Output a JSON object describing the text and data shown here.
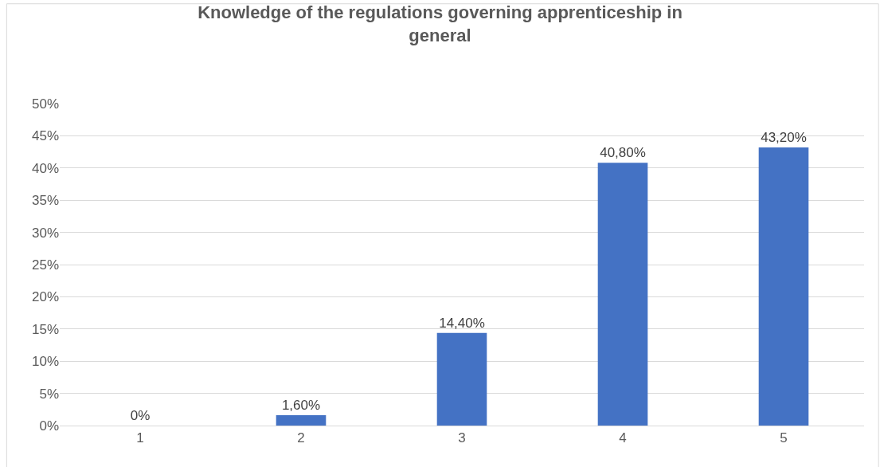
{
  "chart_data": {
    "type": "bar",
    "title": "Knowledge of the regulations governing apprenticeship in\ngeneral",
    "categories": [
      "1",
      "2",
      "3",
      "4",
      "5"
    ],
    "values": [
      0,
      1.6,
      14.4,
      40.8,
      43.2
    ],
    "value_labels": [
      "0%",
      "1,60%",
      "14,40%",
      "40,80%",
      "43,20%"
    ],
    "color": "#4472c4",
    "ylim": [
      0,
      50
    ],
    "yticks": [
      {
        "value": 0,
        "label": "0%"
      },
      {
        "value": 5,
        "label": "5%"
      },
      {
        "value": 10,
        "label": "10%"
      },
      {
        "value": 15,
        "label": "15%"
      },
      {
        "value": 20,
        "label": "20%"
      },
      {
        "value": 25,
        "label": "25%"
      },
      {
        "value": 30,
        "label": "30%"
      },
      {
        "value": 35,
        "label": "35%"
      },
      {
        "value": 40,
        "label": "40%"
      },
      {
        "value": 45,
        "label": "45%"
      },
      {
        "value": 50,
        "label": "50%"
      }
    ],
    "grid": "y"
  }
}
